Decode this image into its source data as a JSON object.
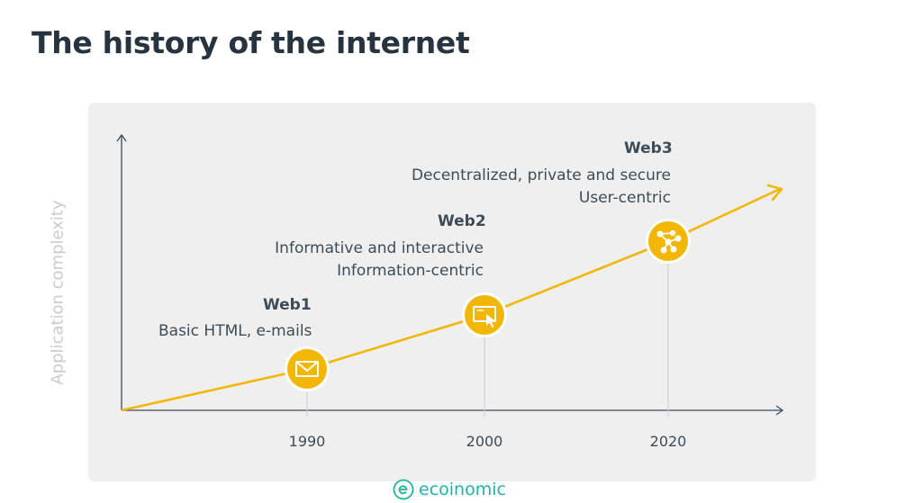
{
  "title": "The history of the internet",
  "y_axis_label": "Application complexity",
  "eras": [
    {
      "name": "Web1",
      "description": [
        "Basic HTML, e-mails"
      ],
      "year": "1990",
      "icon": "envelope-icon"
    },
    {
      "name": "Web2",
      "description": [
        "Informative and interactive",
        "Information-centric"
      ],
      "year": "2000",
      "icon": "screen-cursor-icon"
    },
    {
      "name": "Web3",
      "description": [
        "Decentralized, private and secure",
        "User-centric"
      ],
      "year": "2020",
      "icon": "network-nodes-icon"
    }
  ],
  "brand": {
    "name": "ecoinomic",
    "icon": "ecoinomic-logo-icon"
  },
  "colors": {
    "accent": "#f2b705",
    "title": "#27343f",
    "text": "#3d4c57",
    "panel": "#efefef",
    "axis": "#3d4c57",
    "brand": "#22b3a4",
    "muted": "#c9cbcd"
  }
}
